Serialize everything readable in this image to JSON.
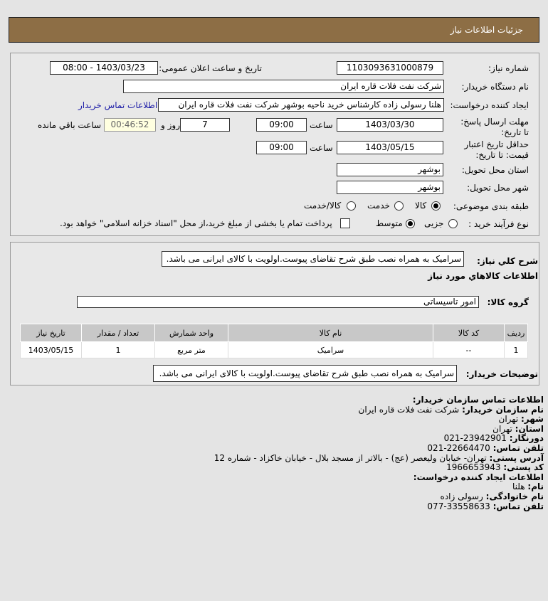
{
  "header": {
    "title": "جزئیات اطلاعات نیاز"
  },
  "form": {
    "need_number_label": "شماره نیاز:",
    "need_number": "1103093631000879",
    "announce_label": "تاریخ و ساعت اعلان عمومی:",
    "announce_value": "1403/03/23 - 08:00",
    "buyer_org_label": "نام دستگاه خریدار:",
    "buyer_org": "شرکت نفت فلات قاره ایران",
    "creator_label": "ایجاد کننده درخواست:",
    "creator": "هلنا رسولی زاده کارشناس خرید ناحیه بوشهر  شرکت نفت فلات قاره ایران",
    "contact_link": "اطلاعات تماس خریدار",
    "deadline_label": "مهلت ارسال پاسخ: تا تاریخ:",
    "deadline_date": "1403/03/30",
    "time_label": "ساعت",
    "deadline_time": "09:00",
    "days": "7",
    "days_label": "روز و",
    "remaining": "00:46:52",
    "remaining_label": "ساعت باقي مانده",
    "validity_label": "حداقل تاریخ اعتبار قیمت: تا تاریخ:",
    "validity_date": "1403/05/15",
    "validity_time": "09:00",
    "province_label": "استان محل تحویل:",
    "province": "بوشهر",
    "city_label": "شهر محل تحویل:",
    "city": "بوشهر",
    "category_label": "طبقه بندی موضوعی:",
    "category_options": [
      "کالا",
      "خدمت",
      "کالا/خدمت"
    ],
    "category_selected": "کالا",
    "process_label": "نوع فرآیند خرید :",
    "process_options": [
      "جزیی",
      "متوسط"
    ],
    "process_selected": "متوسط",
    "payment_note": "پرداخت تمام یا بخشی از مبلغ خرید،از محل \"اسناد خزانه اسلامی\" خواهد بود.",
    "payment_checked": false
  },
  "details": {
    "desc_label": "شرح کلي نیاز:",
    "desc": "سرامیک به همراه نصب طبق شرح تقاضای پیوست.اولویت با کالای ایرانی می باشد.",
    "goods_title": "اطلاعات کالاهاي مورد نیاز",
    "group_label": "گروه کالا:",
    "group": "امور تاسیساتی",
    "table": {
      "headers": [
        "ردیف",
        "کد کالا",
        "نام کالا",
        "واحد شمارش",
        "تعداد / مقدار",
        "تاریخ نیاز"
      ],
      "rows": [
        [
          "1",
          "--",
          "سرامیک",
          "متر مربع",
          "1",
          "1403/05/15"
        ]
      ]
    },
    "notes_label": "توضیحات خریدار:",
    "notes": "سرامیک به همراه نصب طبق شرح تقاضای پیوست.اولویت با کالای ایرانی می باشد."
  },
  "contact": {
    "title": "اطلاعات تماس سازمان خریدار:",
    "org_label": "نام سازمان خریدار:",
    "org": "شرکت نفت فلات قاره ایران",
    "city_label": "شهر:",
    "city": "تهران",
    "province_label": "استان:",
    "province": "تهران",
    "fax_label": "دورنگار:",
    "fax": "021-23942901",
    "phone_label": "تلفن تماس:",
    "phone": "021-22664470",
    "address_label": "آدرس پستی:",
    "address": "تهران- خیابان ولیعصر (عج) - بالاتر از مسجد بلال - خیابان خاکزاد - شماره 12",
    "postal_label": "کد پستی:",
    "postal": "1966653943",
    "creator_title": "اطلاعات ایجاد کننده درخواست:",
    "name_label": "نام:",
    "name": "هلنا",
    "family_label": "نام خانوادگی:",
    "family": "رسولی زاده",
    "cphone_label": "تلفن تماس:",
    "cphone": "077-33558633"
  },
  "colors": {
    "header": "#8d6e45",
    "link": "#1a1aa6",
    "timer_bg": "#ffffe0"
  }
}
